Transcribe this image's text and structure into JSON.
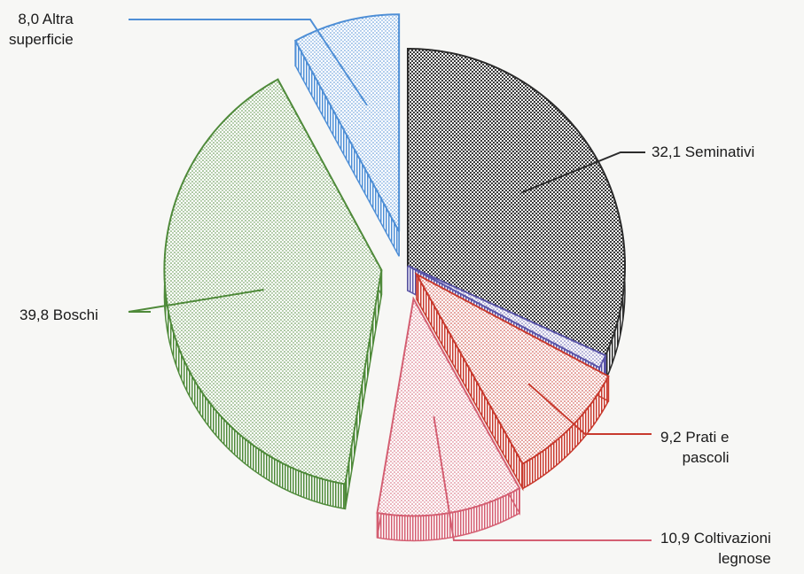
{
  "chart_data": {
    "type": "pie",
    "style": "3d-exploded",
    "slices": [
      {
        "value": 32.1,
        "value_label": "32,1",
        "name": "Seminativi",
        "name_lines": [
          "32,1 Seminativi"
        ],
        "color": "#2c2c2c"
      },
      {
        "value": 1.0,
        "value_label": "",
        "name": "",
        "name_lines": [],
        "color": "#5a55a8"
      },
      {
        "value": 9.2,
        "value_label": "9,2",
        "name": "Prati e pascoli",
        "name_lines": [
          "9,2 Prati e",
          "pascoli"
        ],
        "color": "#c83a2e"
      },
      {
        "value": 10.9,
        "value_label": "10,9",
        "name": "Coltivazioni legnose",
        "name_lines": [
          "10,9 Coltivazioni",
          "legnose"
        ],
        "color": "#d45f72"
      },
      {
        "value": 39.8,
        "value_label": "39,8",
        "name": "Boschi",
        "name_lines": [
          "39,8 Boschi"
        ],
        "color": "#4f8a3a"
      },
      {
        "value": 8.0,
        "value_label": "8,0",
        "name": "Altra superficie",
        "name_lines": [
          "8,0 Altra",
          "superficie"
        ],
        "color": "#4f8fd6"
      }
    ],
    "legend": "callouts"
  }
}
